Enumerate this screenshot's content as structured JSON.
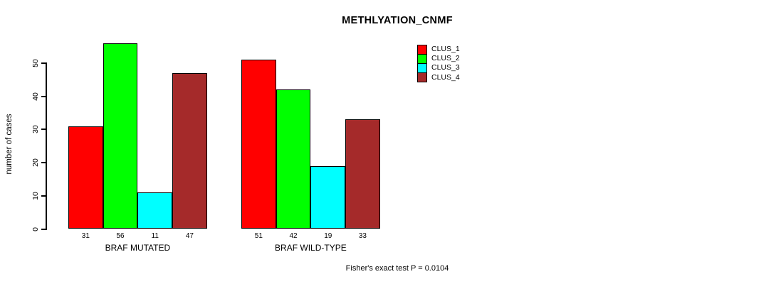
{
  "chart_data": {
    "type": "bar",
    "title": "METHLYATION_CNMF",
    "xlabel": "",
    "ylabel": "number of cases",
    "categories": [
      "BRAF MUTATED",
      "BRAF WILD-TYPE"
    ],
    "series": [
      {
        "name": "CLUS_1",
        "color": "#FF0000",
        "values": [
          31,
          51
        ]
      },
      {
        "name": "CLUS_2",
        "color": "#00FF00",
        "values": [
          56,
          42
        ]
      },
      {
        "name": "CLUS_3",
        "color": "#00FFFF",
        "values": [
          11,
          19
        ]
      },
      {
        "name": "CLUS_4",
        "color": "#A52A2A",
        "values": [
          47,
          33
        ]
      }
    ],
    "yticks": [
      0,
      10,
      20,
      30,
      40,
      50
    ],
    "ylim": [
      0,
      56
    ],
    "grid": false,
    "legend_position": "top-right",
    "show_bar_values": true,
    "annotation": "Fisher's exact test P = 0.0104"
  }
}
